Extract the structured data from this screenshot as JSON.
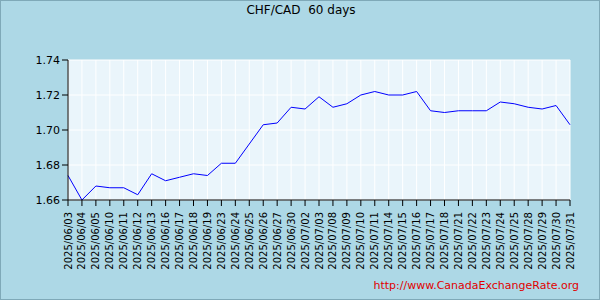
{
  "chart_data": {
    "type": "line",
    "title": "CHF/CAD  60 days",
    "annotation": "http://www.CanadaExchangeRate.org",
    "categories": [
      "2025/06/03",
      "2025/06/04",
      "2025/06/05",
      "2025/06/10",
      "2025/06/11",
      "2025/06/12",
      "2025/06/13",
      "2025/06/16",
      "2025/06/17",
      "2025/06/18",
      "2025/06/19",
      "2025/06/23",
      "2025/06/24",
      "2025/06/25",
      "2025/06/26",
      "2025/06/27",
      "2025/06/30",
      "2025/07/02",
      "2025/07/03",
      "2025/07/08",
      "2025/07/09",
      "2025/07/10",
      "2025/07/11",
      "2025/07/14",
      "2025/07/15",
      "2025/07/16",
      "2025/07/17",
      "2025/07/18",
      "2025/07/21",
      "2025/07/22",
      "2025/07/23",
      "2025/07/24",
      "2025/07/25",
      "2025/07/28",
      "2025/07/29",
      "2025/07/30",
      "2025/07/31"
    ],
    "values": [
      1.674,
      1.66,
      1.668,
      1.667,
      1.667,
      1.663,
      1.675,
      1.671,
      1.673,
      1.675,
      1.674,
      1.681,
      1.681,
      1.692,
      1.703,
      1.704,
      1.713,
      1.712,
      1.719,
      1.713,
      1.715,
      1.72,
      1.722,
      1.72,
      1.72,
      1.722,
      1.711,
      1.71,
      1.711,
      1.711,
      1.711,
      1.716,
      1.715,
      1.713,
      1.712,
      1.714,
      1.703
    ],
    "color": "#0000ff",
    "ylim": [
      1.66,
      1.74
    ],
    "yticks": [
      1.66,
      1.68,
      {
        "value": 1.7,
        "label": "1.70"
      },
      1.72,
      1.74
    ],
    "grid": true
  }
}
